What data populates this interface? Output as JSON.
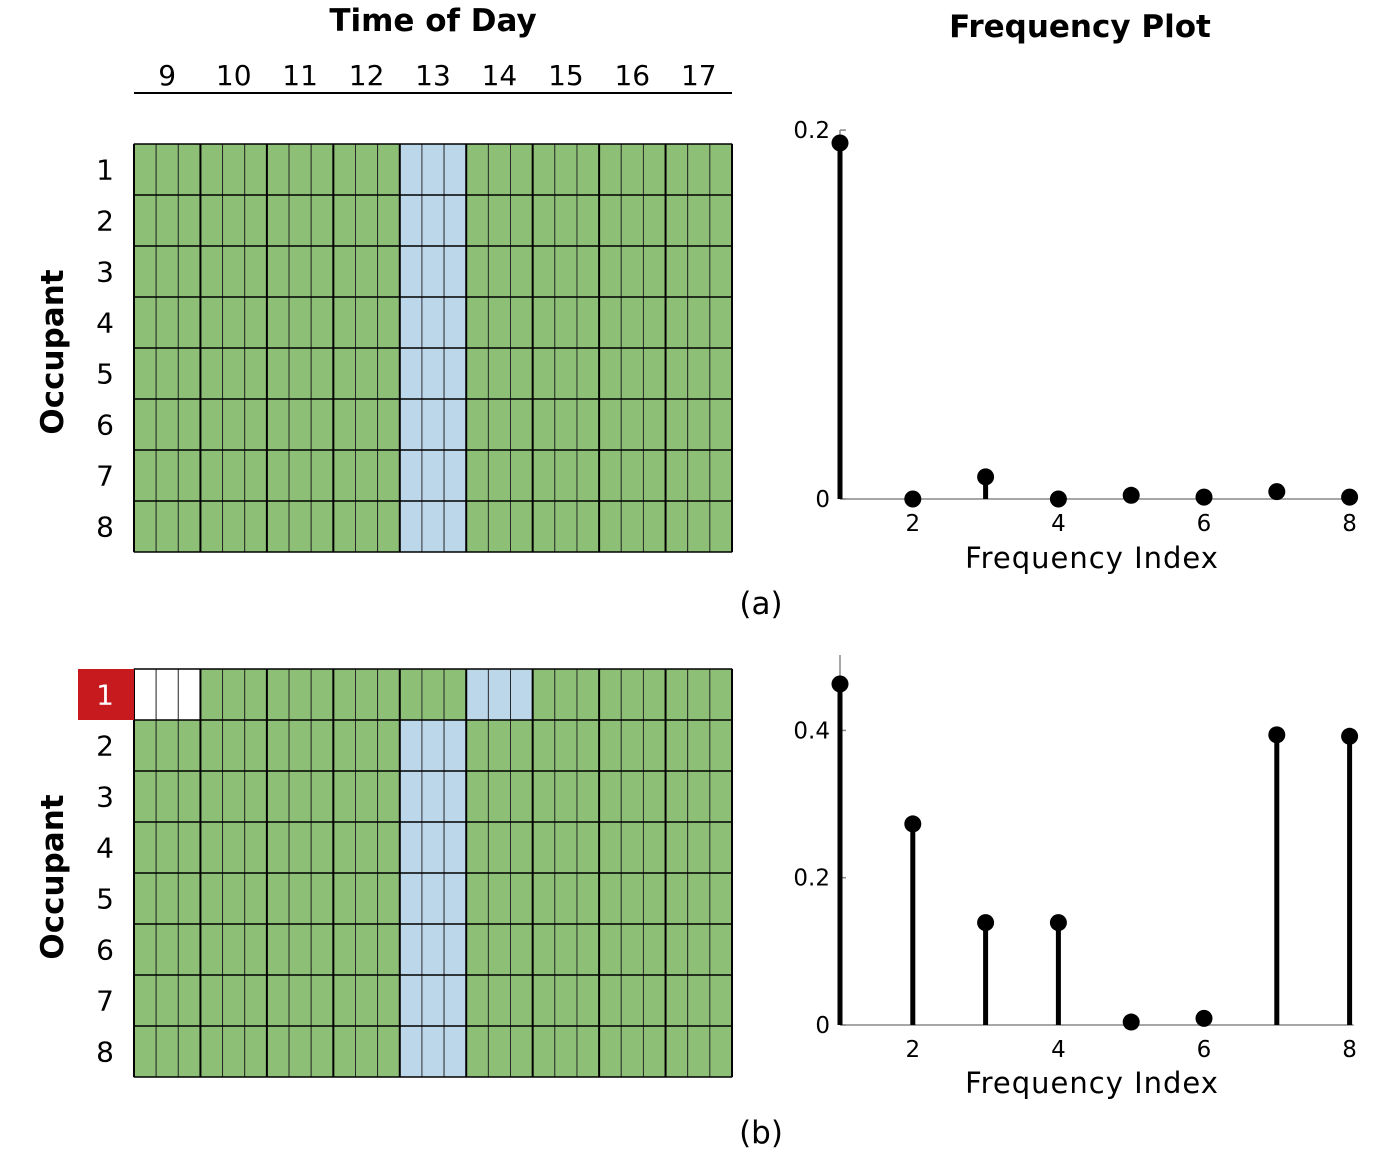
{
  "heatmap": {
    "title": "Time of Day",
    "hours": [
      "9",
      "10",
      "11",
      "12",
      "13",
      "14",
      "15",
      "16",
      "17"
    ],
    "ylabel": "Occupant",
    "occupants": [
      "1",
      "2",
      "3",
      "4",
      "5",
      "6",
      "7",
      "8"
    ],
    "colors": {
      "G": "#8dbf76",
      "B": "#bcd7ea",
      "W": "#ffffff",
      "highlight": "#c61a1e"
    },
    "panels": [
      {
        "label": "(a)",
        "highlight": "",
        "rows": [
          "GGGGGGGGGGGGBBBGGGGGGGGGGGGWWW",
          "GGGGGGGGGGGGBBBGGGGGGGGGGGGWWW",
          "GGGGGGGGGGGGBBBGGGGGGGGGGGGWWW",
          "GGGGGGGGGGGGBBBGGGGGGGGGGGGWWW",
          "GGGGGGGGGGGGBBBGGGGGGGGGGGGWWW",
          "GGGGGGGGGGGGBBBGGGGGGGGGGGGWWW",
          "GGGGGGGGGGGGBBBGGGGGGGGGGGGWWW",
          "GGGGGGGGGGGGBBBGGGGGGGGGGGGWWW"
        ]
      },
      {
        "label": "(b)",
        "highlight": "1",
        "rows": [
          "WWWGGGGGGGGGGGGBBBGGGGGGGGGGGG",
          "GGGGGGGGGGGGBBBGGGGGGGGGGGGWWW",
          "GGGGGGGGGGGGBBBGGGGGGGGGGGGWWW",
          "GGGGGGGGGGGGBBBGGGGGGGGGGGGWWW",
          "GGGGGGGGGGGGBBBGGGGGGGGGGGGWWW",
          "GGGGGGGGGGGGBBBGGGGGGGGGGGGWWW",
          "GGGGGGGGGGGGBBBGGGGGGGGGGGGWWW",
          "GGGGGGGGGGGGBBBGGGGGGGGGGGGWWW"
        ]
      }
    ]
  },
  "chart_data": [
    {
      "type": "scatter",
      "title": "Frequency Plot",
      "xlabel": "Frequency Index",
      "ylabel": "",
      "x": [
        1,
        2,
        3,
        4,
        5,
        6,
        7,
        8
      ],
      "series": [
        {
          "values": [
            0.193,
            0.0,
            0.012,
            0.0,
            0.002,
            0.001,
            0.004,
            0.001
          ]
        }
      ],
      "xticks": [
        "2",
        "4",
        "6",
        "8"
      ],
      "yticks": [
        "0",
        "0.2"
      ],
      "xlim": [
        1,
        8
      ],
      "ylim": [
        0,
        0.2
      ]
    },
    {
      "type": "scatter",
      "title": "",
      "xlabel": "Frequency Index",
      "ylabel": "",
      "x": [
        1,
        2,
        3,
        4,
        5,
        6,
        7,
        8
      ],
      "series": [
        {
          "values": [
            0.463,
            0.273,
            0.139,
            0.139,
            0.004,
            0.009,
            0.394,
            0.392
          ]
        }
      ],
      "xticks": [
        "2",
        "4",
        "6",
        "8"
      ],
      "yticks": [
        "0",
        "0.2",
        "0.4"
      ],
      "xlim": [
        1,
        8
      ],
      "ylim": [
        0,
        0.463
      ]
    }
  ]
}
